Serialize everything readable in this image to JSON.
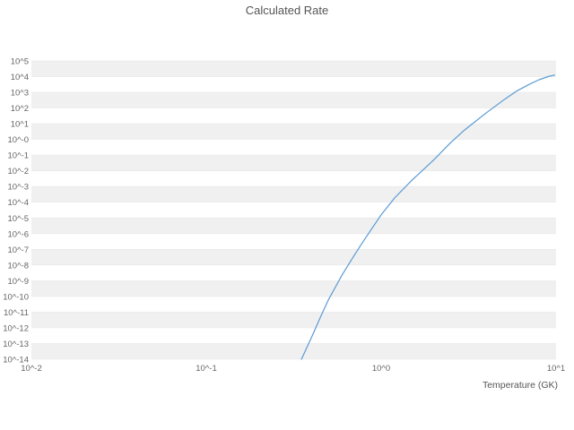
{
  "chart_data": {
    "type": "line",
    "title": "Calculated Rate",
    "xlabel": "Temperature (GK)",
    "ylabel": "",
    "x_scale": "log",
    "y_scale": "log",
    "xlim": [
      0.01,
      10
    ],
    "ylim_log10": [
      -14,
      5
    ],
    "grid": "horizontal-bands",
    "legend": false,
    "band_colors": [
      "#f0f0f0",
      "#ffffff"
    ],
    "gridline_color": "#e8e8e8",
    "x_ticks": [
      {
        "value": 0.01,
        "label": "10^-2"
      },
      {
        "value": 0.1,
        "label": "10^-1"
      },
      {
        "value": 1,
        "label": "10^0"
      },
      {
        "value": 10,
        "label": "10^1"
      }
    ],
    "y_ticks": [
      {
        "exponent": 5,
        "label": "10^5"
      },
      {
        "exponent": 4,
        "label": "10^4"
      },
      {
        "exponent": 3,
        "label": "10^3"
      },
      {
        "exponent": 2,
        "label": "10^2"
      },
      {
        "exponent": 1,
        "label": "10^1"
      },
      {
        "exponent": 0,
        "label": "10^-0"
      },
      {
        "exponent": -1,
        "label": "10^-1"
      },
      {
        "exponent": -2,
        "label": "10^-2"
      },
      {
        "exponent": -3,
        "label": "10^-3"
      },
      {
        "exponent": -4,
        "label": "10^-4"
      },
      {
        "exponent": -5,
        "label": "10^-5"
      },
      {
        "exponent": -6,
        "label": "10^-6"
      },
      {
        "exponent": -7,
        "label": "10^-7"
      },
      {
        "exponent": -8,
        "label": "10^-8"
      },
      {
        "exponent": -9,
        "label": "10^-9"
      },
      {
        "exponent": -10,
        "label": "10^-10"
      },
      {
        "exponent": -11,
        "label": "10^-11"
      },
      {
        "exponent": -12,
        "label": "10^-12"
      },
      {
        "exponent": -13,
        "label": "10^-13"
      },
      {
        "exponent": -14,
        "label": "10^-14"
      }
    ],
    "series": [
      {
        "name": "Calculated Rate",
        "color": "#5b9bd5",
        "x": [
          0.35,
          0.4,
          0.45,
          0.5,
          0.6,
          0.7,
          0.8,
          1.0,
          1.2,
          1.5,
          2.0,
          2.5,
          3.0,
          4.0,
          5.0,
          6.0,
          7.0,
          8.0,
          9.0,
          9.8
        ],
        "log10_rate": [
          -14.0,
          -12.6,
          -11.3,
          -10.2,
          -8.6,
          -7.4,
          -6.4,
          -4.8,
          -3.7,
          -2.6,
          -1.3,
          -0.2,
          0.6,
          1.7,
          2.5,
          3.1,
          3.5,
          3.8,
          4.0,
          4.1
        ]
      }
    ]
  }
}
